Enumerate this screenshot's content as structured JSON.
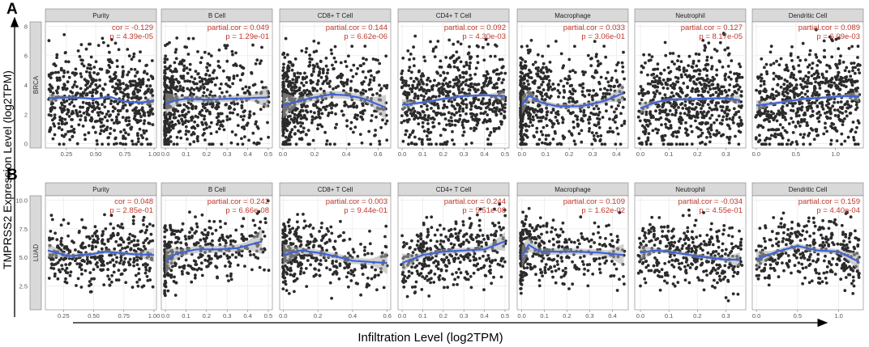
{
  "figure": {
    "y_axis_label": "TMPRSS2 Expression Level (log2TPM)",
    "x_axis_label": "Infiltration Level (log2TPM)",
    "colors": {
      "point": "#2b2b2b",
      "fit_line": "#3f63d6",
      "ci_band": "#a9a9a9",
      "stat_text": "#c0392b",
      "strip_bg": "#d9d9d9",
      "grid": "#ebebeb",
      "border": "#7f7f7f"
    }
  },
  "chart_data": [
    {
      "type": "scatter",
      "panel_label": "A",
      "cancer": "BRCA",
      "ylim": [
        -0.3,
        8.3
      ],
      "yticks": [
        "0",
        "2",
        "4",
        "6",
        "8"
      ],
      "facets": [
        {
          "title": "Purity",
          "stat_name": "cor",
          "cor": "-0.129",
          "p": "4.39e-05",
          "xlim": [
            0.07,
            1.02
          ],
          "xticks": [
            "0.25",
            "0.50",
            "0.75",
            "1.00"
          ],
          "density": "uniform",
          "curve": [
            [
              0.1,
              3.1
            ],
            [
              0.3,
              3.15
            ],
            [
              0.5,
              3.05
            ],
            [
              0.62,
              3.2
            ],
            [
              0.75,
              2.85
            ],
            [
              0.9,
              2.8
            ],
            [
              1.0,
              2.95
            ]
          ],
          "band": 0.25
        },
        {
          "title": "B Cell",
          "stat_name": "partial.cor",
          "cor": "0.049",
          "p": "1.29e-01",
          "xlim": [
            -0.02,
            0.52
          ],
          "xticks": [
            "0.0",
            "0.1",
            "0.2",
            "0.3",
            "0.4",
            "0.5"
          ],
          "density": "left",
          "curve": [
            [
              0,
              2.7
            ],
            [
              0.05,
              2.95
            ],
            [
              0.1,
              3.05
            ],
            [
              0.2,
              3.0
            ],
            [
              0.3,
              3.05
            ],
            [
              0.4,
              3.1
            ],
            [
              0.5,
              3.15
            ]
          ],
          "band": 0.6
        },
        {
          "title": "CD8+ T Cell",
          "stat_name": "partial.cor",
          "cor": "0.144",
          "p": "6.62e-06",
          "xlim": [
            -0.02,
            0.68
          ],
          "xticks": [
            "0.0",
            "0.2",
            "0.4",
            "0.6"
          ],
          "density": "left",
          "curve": [
            [
              0,
              2.6
            ],
            [
              0.1,
              2.9
            ],
            [
              0.2,
              3.15
            ],
            [
              0.3,
              3.35
            ],
            [
              0.4,
              3.3
            ],
            [
              0.5,
              3.1
            ],
            [
              0.65,
              2.45
            ]
          ],
          "band": 0.7
        },
        {
          "title": "CD4+ T Cell",
          "stat_name": "partial.cor",
          "cor": "0.092",
          "p": "4.30e-03",
          "xlim": [
            -0.02,
            0.52
          ],
          "xticks": [
            "0.0",
            "0.1",
            "0.2",
            "0.3",
            "0.4",
            "0.5"
          ],
          "density": "uniform",
          "curve": [
            [
              0,
              2.65
            ],
            [
              0.1,
              2.8
            ],
            [
              0.2,
              3.05
            ],
            [
              0.3,
              3.25
            ],
            [
              0.4,
              3.3
            ],
            [
              0.5,
              3.25
            ]
          ],
          "band": 0.3
        },
        {
          "title": "Macrophage",
          "stat_name": "partial.cor",
          "cor": "0.033",
          "p": "3.06e-01",
          "xlim": [
            -0.02,
            0.45
          ],
          "xticks": [
            "0.0",
            "0.1",
            "0.2",
            "0.3",
            "0.4"
          ],
          "density": "left",
          "curve": [
            [
              0,
              2.6
            ],
            [
              0.03,
              3.3
            ],
            [
              0.08,
              2.8
            ],
            [
              0.15,
              2.55
            ],
            [
              0.25,
              2.55
            ],
            [
              0.35,
              2.9
            ],
            [
              0.43,
              3.45
            ]
          ],
          "band": 0.5
        },
        {
          "title": "Neutrophil",
          "stat_name": "partial.cor",
          "cor": "0.127",
          "p": "8.17e-05",
          "xlim": [
            -0.02,
            0.37
          ],
          "xticks": [
            "0.0",
            "0.1",
            "0.2",
            "0.3"
          ],
          "density": "uniform",
          "curve": [
            [
              0,
              2.4
            ],
            [
              0.05,
              2.8
            ],
            [
              0.1,
              3.0
            ],
            [
              0.2,
              3.05
            ],
            [
              0.3,
              3.1
            ],
            [
              0.35,
              2.95
            ]
          ],
          "band": 0.3
        },
        {
          "title": "Dendritic Cell",
          "stat_name": "partial.cor",
          "cor": "0.089",
          "p": "6.09e-03",
          "xlim": [
            -0.05,
            1.35
          ],
          "xticks": [
            "0.0",
            "0.5",
            "1.0"
          ],
          "density": "uniform",
          "curve": [
            [
              0,
              2.6
            ],
            [
              0.3,
              2.8
            ],
            [
              0.6,
              3.05
            ],
            [
              0.9,
              3.15
            ],
            [
              1.1,
              3.25
            ],
            [
              1.3,
              3.2
            ]
          ],
          "band": 0.3
        }
      ]
    },
    {
      "type": "scatter",
      "panel_label": "B",
      "cancer": "LUAD",
      "ylim": [
        0.4,
        10.4
      ],
      "yticks": [
        "2.5",
        "5.0",
        "7.5",
        "10.0"
      ],
      "facets": [
        {
          "title": "Purity",
          "stat_name": "cor",
          "cor": "0.048",
          "p": "2.85e-01",
          "xlim": [
            0.1,
            1.02
          ],
          "xticks": [
            "0.25",
            "0.50",
            "0.75",
            "1.00"
          ],
          "density": "uniform",
          "curve": [
            [
              0.12,
              5.6
            ],
            [
              0.3,
              5.1
            ],
            [
              0.5,
              5.3
            ],
            [
              0.6,
              5.5
            ],
            [
              0.8,
              5.3
            ],
            [
              1.0,
              5.2
            ]
          ],
          "band": 0.4
        },
        {
          "title": "B Cell",
          "stat_name": "partial.cor",
          "cor": "0.242",
          "p": "6.66e-08",
          "xlim": [
            -0.02,
            0.52
          ],
          "xticks": [
            "0.0",
            "0.1",
            "0.2",
            "0.3",
            "0.4",
            "0.5"
          ],
          "density": "left",
          "curve": [
            [
              0,
              4.6
            ],
            [
              0.05,
              5.3
            ],
            [
              0.15,
              5.7
            ],
            [
              0.25,
              5.7
            ],
            [
              0.35,
              5.8
            ],
            [
              0.47,
              6.4
            ]
          ],
          "band": 0.7
        },
        {
          "title": "CD8+ T Cell",
          "stat_name": "partial.cor",
          "cor": "0.003",
          "p": "9.44e-01",
          "xlim": [
            -0.02,
            0.62
          ],
          "xticks": [
            "0.0",
            "0.2",
            "0.4",
            "0.6"
          ],
          "density": "left",
          "curve": [
            [
              0,
              5.2
            ],
            [
              0.1,
              5.6
            ],
            [
              0.2,
              5.4
            ],
            [
              0.3,
              5.1
            ],
            [
              0.4,
              4.7
            ],
            [
              0.5,
              4.6
            ],
            [
              0.6,
              4.5
            ]
          ],
          "band": 0.6
        },
        {
          "title": "CD4+ T Cell",
          "stat_name": "partial.cor",
          "cor": "0.244",
          "p": "5.51e-08",
          "xlim": [
            -0.02,
            0.52
          ],
          "xticks": [
            "0.0",
            "0.1",
            "0.2",
            "0.3",
            "0.4",
            "0.5"
          ],
          "density": "uniform",
          "curve": [
            [
              0,
              4.5
            ],
            [
              0.1,
              5.2
            ],
            [
              0.2,
              5.5
            ],
            [
              0.3,
              5.6
            ],
            [
              0.4,
              5.7
            ],
            [
              0.5,
              6.4
            ]
          ],
          "band": 0.5
        },
        {
          "title": "Macrophage",
          "stat_name": "partial.cor",
          "cor": "0.109",
          "p": "1.62e-02",
          "xlim": [
            -0.02,
            0.47
          ],
          "xticks": [
            "0.0",
            "0.1",
            "0.2",
            "0.3",
            "0.4"
          ],
          "density": "left",
          "curve": [
            [
              0,
              5.0
            ],
            [
              0.03,
              6.1
            ],
            [
              0.08,
              5.5
            ],
            [
              0.15,
              5.5
            ],
            [
              0.25,
              5.5
            ],
            [
              0.35,
              5.4
            ],
            [
              0.45,
              5.2
            ]
          ],
          "band": 0.6
        },
        {
          "title": "Neutrophil",
          "stat_name": "partial.cor",
          "cor": "-0.034",
          "p": "4.55e-01",
          "xlim": [
            -0.02,
            0.37
          ],
          "xticks": [
            "0.0",
            "0.1",
            "0.2",
            "0.3"
          ],
          "density": "uniform",
          "curve": [
            [
              0,
              5.4
            ],
            [
              0.05,
              5.6
            ],
            [
              0.1,
              5.5
            ],
            [
              0.2,
              5.1
            ],
            [
              0.3,
              4.8
            ],
            [
              0.35,
              4.8
            ]
          ],
          "band": 0.4
        },
        {
          "title": "Dendritic Cell",
          "stat_name": "partial.cor",
          "cor": "0.159",
          "p": "4.40e-04",
          "xlim": [
            -0.05,
            1.3
          ],
          "xticks": [
            "0.0",
            "0.5",
            "1.0"
          ],
          "density": "uniform",
          "curve": [
            [
              0,
              4.8
            ],
            [
              0.25,
              5.5
            ],
            [
              0.5,
              6.0
            ],
            [
              0.75,
              5.6
            ],
            [
              1.0,
              5.5
            ],
            [
              1.25,
              4.6
            ]
          ],
          "band": 0.5
        }
      ]
    }
  ]
}
